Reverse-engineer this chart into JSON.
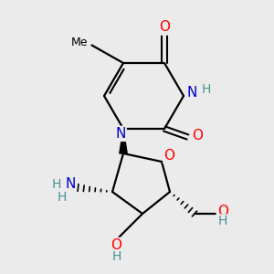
{
  "bg_color": "#ebebeb",
  "bond_color": "#000000",
  "atom_colors": {
    "O": "#ff0000",
    "N": "#0000cc",
    "C": "#000000",
    "H": "#4a9090"
  },
  "font_size": 10,
  "lw": 1.6
}
